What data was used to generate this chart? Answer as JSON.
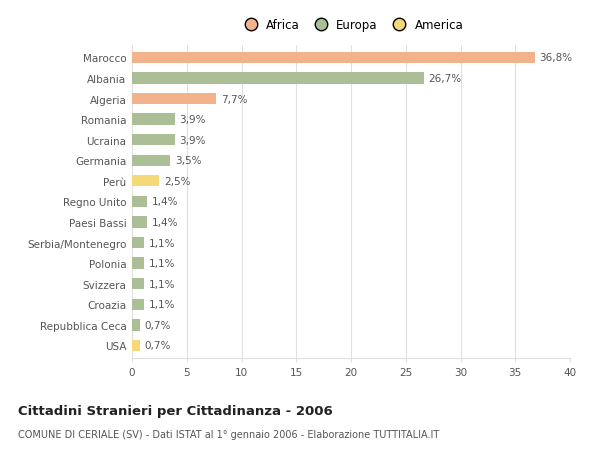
{
  "categories": [
    "Marocco",
    "Albania",
    "Algeria",
    "Romania",
    "Ucraina",
    "Germania",
    "Perù",
    "Regno Unito",
    "Paesi Bassi",
    "Serbia/Montenegro",
    "Polonia",
    "Svizzera",
    "Croazia",
    "Repubblica Ceca",
    "USA"
  ],
  "values": [
    36.8,
    26.7,
    7.7,
    3.9,
    3.9,
    3.5,
    2.5,
    1.4,
    1.4,
    1.1,
    1.1,
    1.1,
    1.1,
    0.7,
    0.7
  ],
  "labels": [
    "36,8%",
    "26,7%",
    "7,7%",
    "3,9%",
    "3,9%",
    "3,5%",
    "2,5%",
    "1,4%",
    "1,4%",
    "1,1%",
    "1,1%",
    "1,1%",
    "1,1%",
    "0,7%",
    "0,7%"
  ],
  "continent": [
    "Africa",
    "Europa",
    "Africa",
    "Europa",
    "Europa",
    "Europa",
    "America",
    "Europa",
    "Europa",
    "Europa",
    "Europa",
    "Europa",
    "Europa",
    "Europa",
    "America"
  ],
  "colors": {
    "Africa": "#F2B28C",
    "Europa": "#ABBE96",
    "America": "#F5D878"
  },
  "xlim": [
    0,
    40
  ],
  "xticks": [
    0,
    5,
    10,
    15,
    20,
    25,
    30,
    35,
    40
  ],
  "title": "Cittadini Stranieri per Cittadinanza - 2006",
  "subtitle": "COMUNE DI CERIALE (SV) - Dati ISTAT al 1° gennaio 2006 - Elaborazione TUTTITALIA.IT",
  "bg_color": "#ffffff",
  "plot_bg_color": "#ffffff",
  "grid_color": "#e0e0e0",
  "bar_height": 0.55,
  "label_fontsize": 7.5,
  "ytick_fontsize": 7.5,
  "xtick_fontsize": 7.5,
  "title_fontsize": 9.5,
  "subtitle_fontsize": 7.0,
  "text_color": "#555555",
  "title_color": "#222222"
}
